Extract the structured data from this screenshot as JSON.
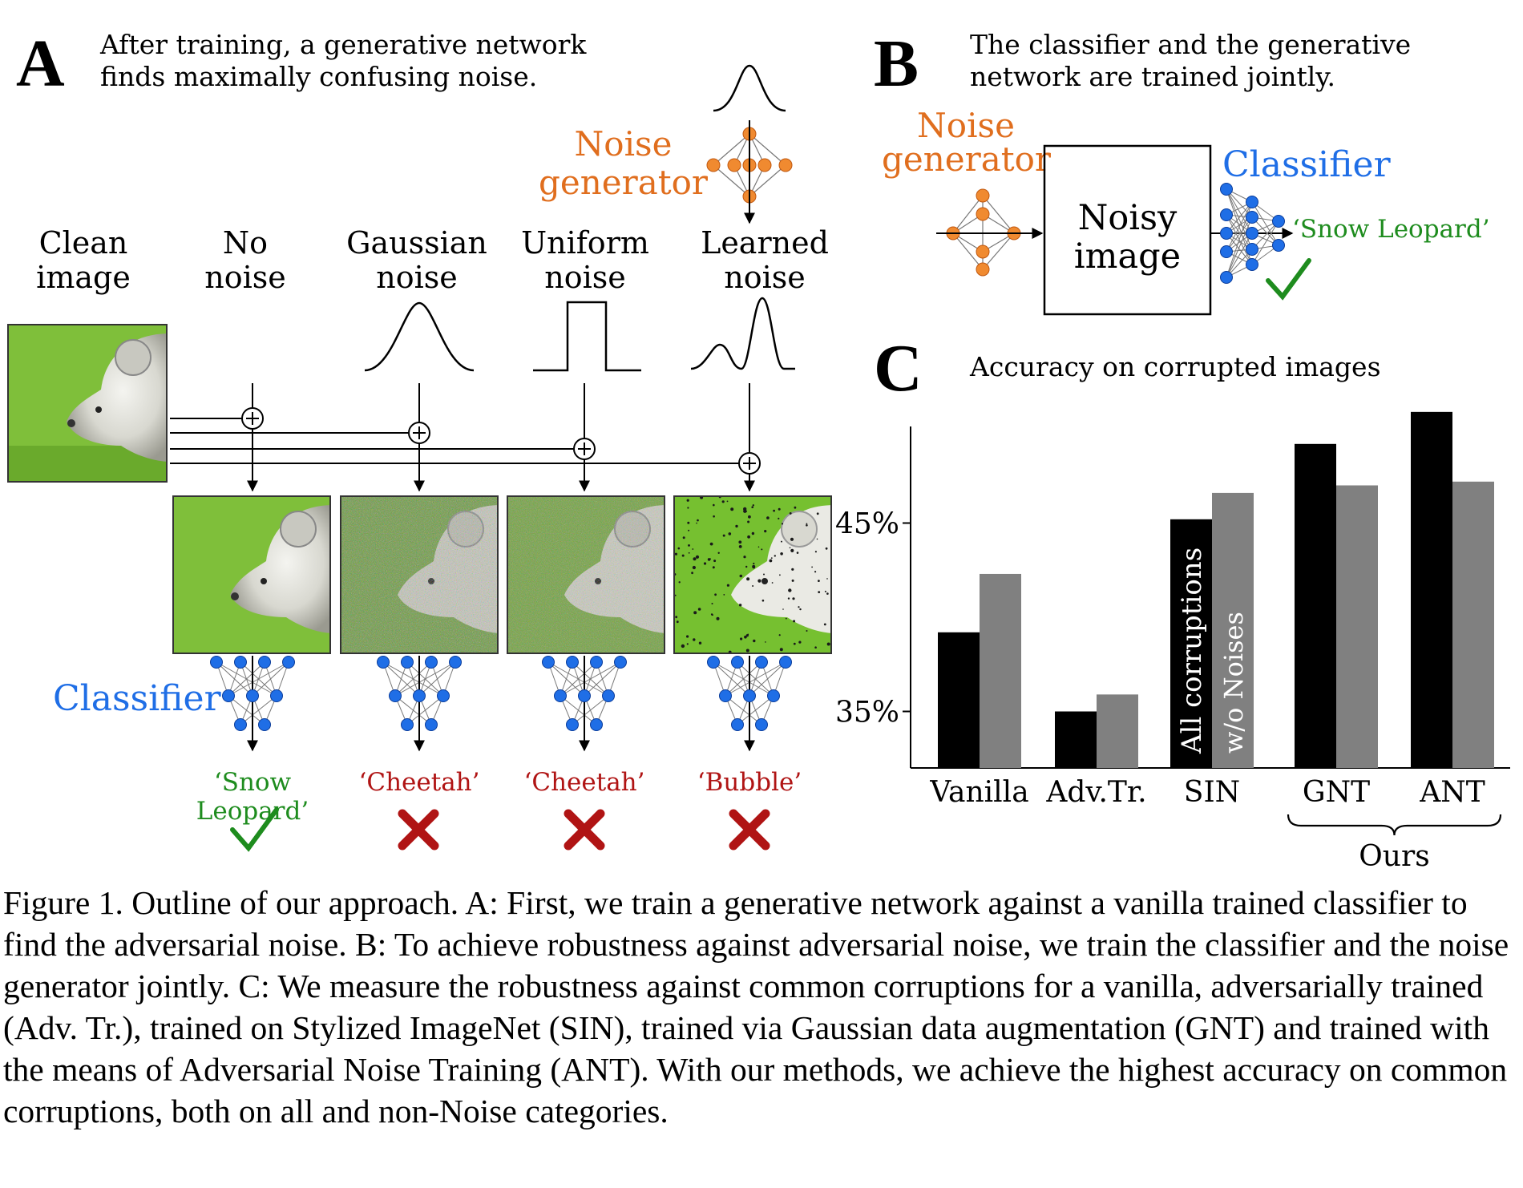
{
  "panel_a": {
    "letter": "A",
    "caption": "After training, a generative network\nfinds maximally confusing noise.",
    "noise_generator_label": "Noise\ngenerator",
    "classifier_label": "Classifier",
    "columns": [
      {
        "heading": "Clean\nimage"
      },
      {
        "heading": "No\nnoise",
        "prediction": "‘Snow Leopard’",
        "result": "correct"
      },
      {
        "heading": "Gaussian\nnoise",
        "prediction": "‘Cheetah’",
        "result": "wrong"
      },
      {
        "heading": "Uniform\nnoise",
        "prediction": "‘Cheetah’",
        "result": "wrong"
      },
      {
        "heading": "Learned\nnoise",
        "prediction": "‘Bubble’",
        "result": "wrong"
      }
    ]
  },
  "panel_b": {
    "letter": "B",
    "caption": "The classifier and the generative\nnetwork are trained jointly.",
    "noise_generator_label": "Noise\ngenerator",
    "box_label": "Noisy\nimage",
    "classifier_label": "Classifier",
    "prediction": "‘Snow Leopard’"
  },
  "panel_c": {
    "letter": "C",
    "title": "Accuracy on corrupted images",
    "series_label_all": "All corruptions",
    "series_label_wo": "w/o Noises",
    "group_label": "Ours"
  },
  "chart_data": {
    "type": "bar",
    "title": "Accuracy on corrupted images",
    "categories": [
      "Vanilla",
      "Adv. Tr.",
      "SIN",
      "GNT",
      "ANT"
    ],
    "category_labels": [
      "Vanilla",
      "Adv.Tr.",
      "SIN",
      "GNT",
      "ANT"
    ],
    "series": [
      {
        "name": "All corruptions",
        "color": "#000000",
        "values": [
          39.2,
          35.0,
          45.2,
          49.2,
          50.9
        ]
      },
      {
        "name": "w/o Noises",
        "color": "#808080",
        "values": [
          42.3,
          35.9,
          46.6,
          47.0,
          47.2
        ]
      }
    ],
    "yticks": [
      35,
      45
    ],
    "ytick_labels": [
      "35%",
      "45%"
    ],
    "ylim": [
      32.0,
      52.0
    ],
    "grid": false,
    "group_brace": {
      "label": "Ours",
      "categories": [
        "GNT",
        "ANT"
      ]
    }
  },
  "caption": "Figure 1. Outline of our approach. A: First, we train a generative network against a vanilla trained classifier to find the adversarial noise. B: To achieve robustness against adversarial noise, we train the classifier and the noise generator jointly. C: We measure the robustness against common corruptions for a vanilla, adversarially trained (Adv. Tr.), trained on Stylized ImageNet (SIN), trained via Gaussian data augmentation (GNT) and trained with the means of Adversarial Noise Training (ANT). With our methods, we achieve the highest accuracy on common corruptions, both on all and non-Noise categories.",
  "colors": {
    "orange": "#e06e1e",
    "blue": "#1f6ee6",
    "green": "#1e8c1e",
    "red": "#b01414"
  }
}
